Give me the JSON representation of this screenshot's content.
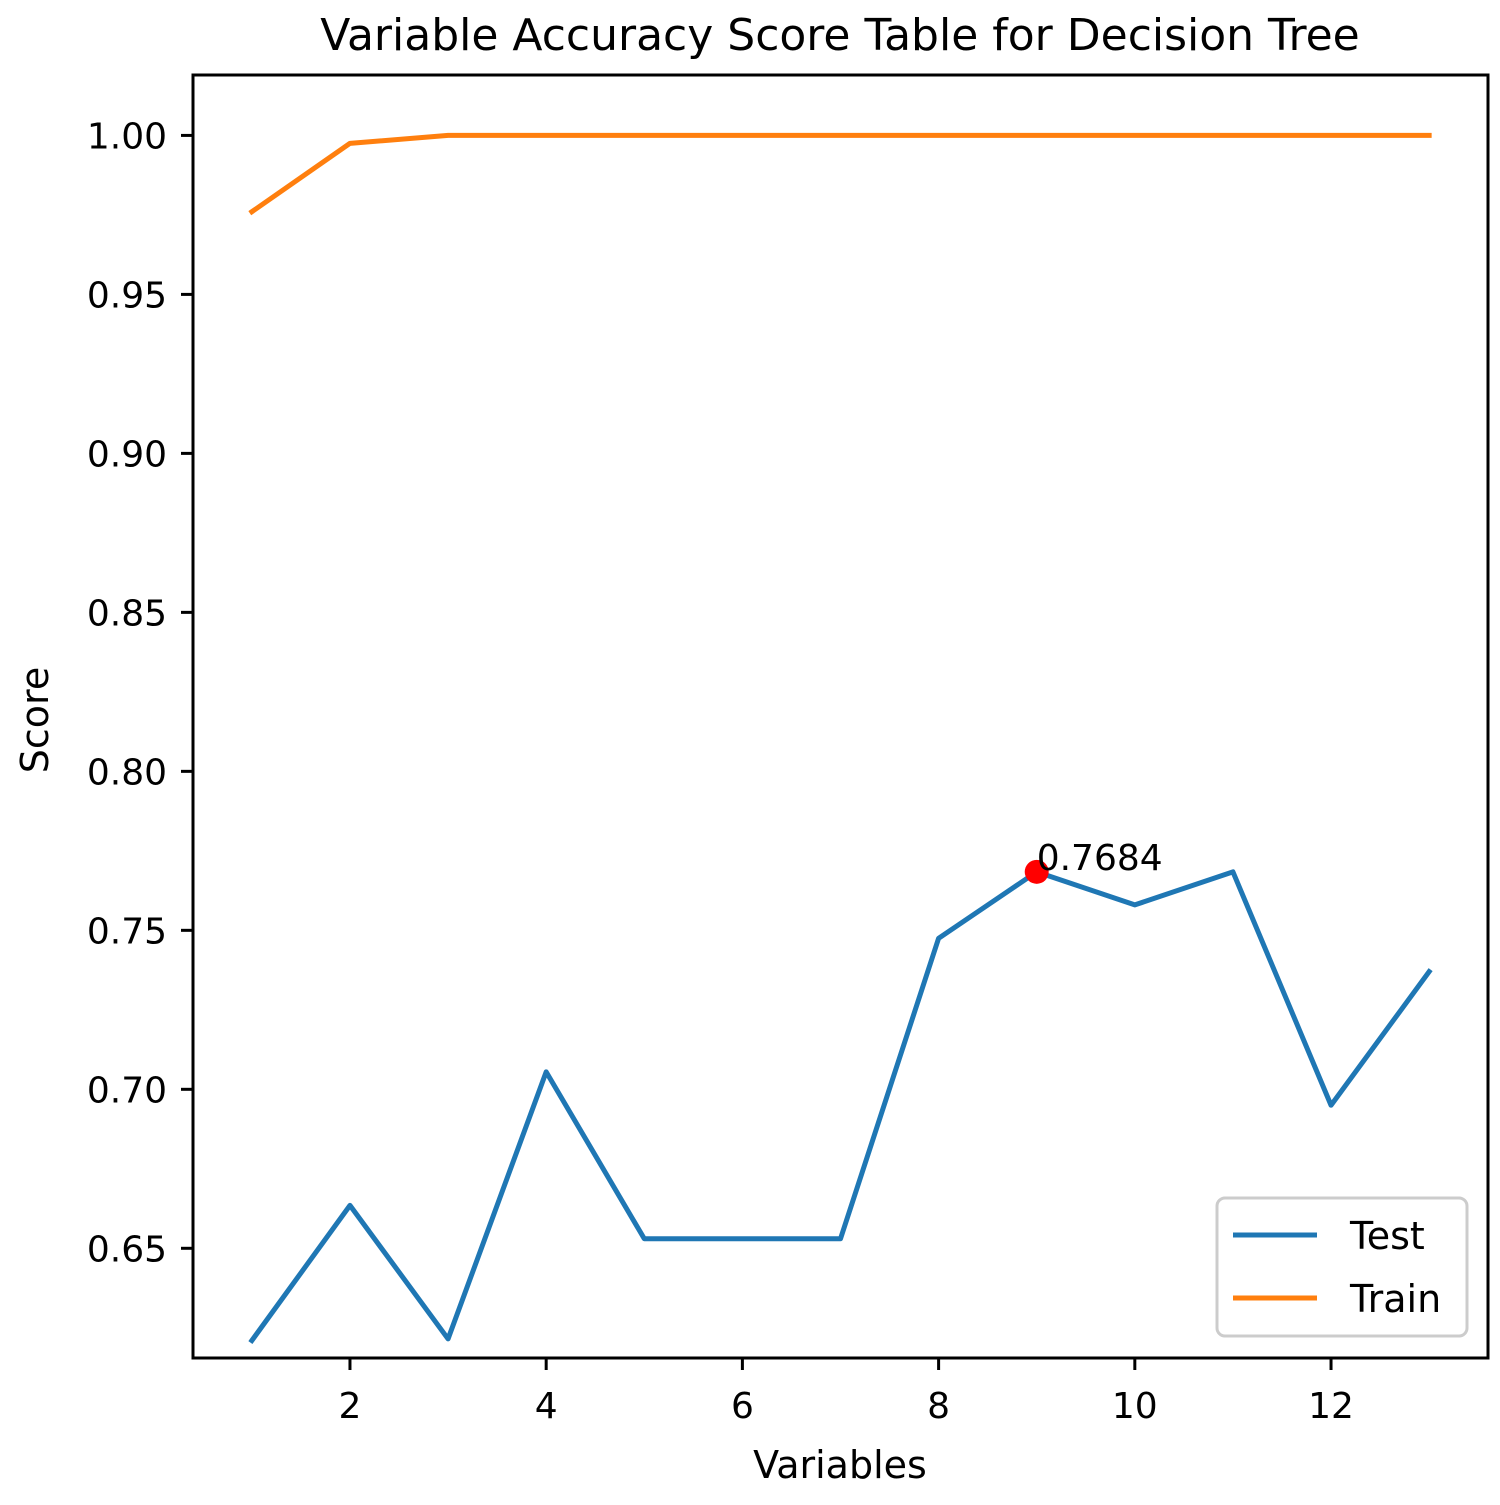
{
  "chart_data": {
    "type": "line",
    "title": "Variable Accuracy Score Table for Decision Tree",
    "xlabel": "Variables",
    "ylabel": "Score",
    "x": [
      1,
      2,
      3,
      4,
      5,
      6,
      7,
      8,
      9,
      10,
      11,
      12,
      13
    ],
    "xlim": [
      0.4,
      13.6
    ],
    "ylim": [
      0.6155,
      1.019
    ],
    "xticks": [
      2,
      4,
      6,
      8,
      10,
      12
    ],
    "xtick_labels": [
      "2",
      "4",
      "6",
      "8",
      "10",
      "12"
    ],
    "yticks": [
      0.65,
      0.7,
      0.75,
      0.8,
      0.85,
      0.9,
      0.95,
      1.0
    ],
    "ytick_labels": [
      "0.65",
      "0.70",
      "0.75",
      "0.80",
      "0.85",
      "0.90",
      "0.95",
      "1.00"
    ],
    "grid": false,
    "legend_position": "lower-right",
    "series": [
      {
        "name": "Test",
        "color": "#1f77b4",
        "values": [
          0.621,
          0.6635,
          0.6215,
          0.7055,
          0.653,
          0.653,
          0.653,
          0.7475,
          0.7684,
          0.758,
          0.7684,
          0.695,
          0.737
        ]
      },
      {
        "name": "Train",
        "color": "#ff7f0e",
        "values": [
          0.976,
          0.9975,
          1.0,
          1.0,
          1.0,
          1.0,
          1.0,
          1.0,
          1.0,
          1.0,
          1.0,
          1.0,
          1.0
        ]
      }
    ],
    "annotations": [
      {
        "x": 9,
        "y": 0.7684,
        "text": "0.7684",
        "marker_color": "#ff0000"
      }
    ]
  }
}
